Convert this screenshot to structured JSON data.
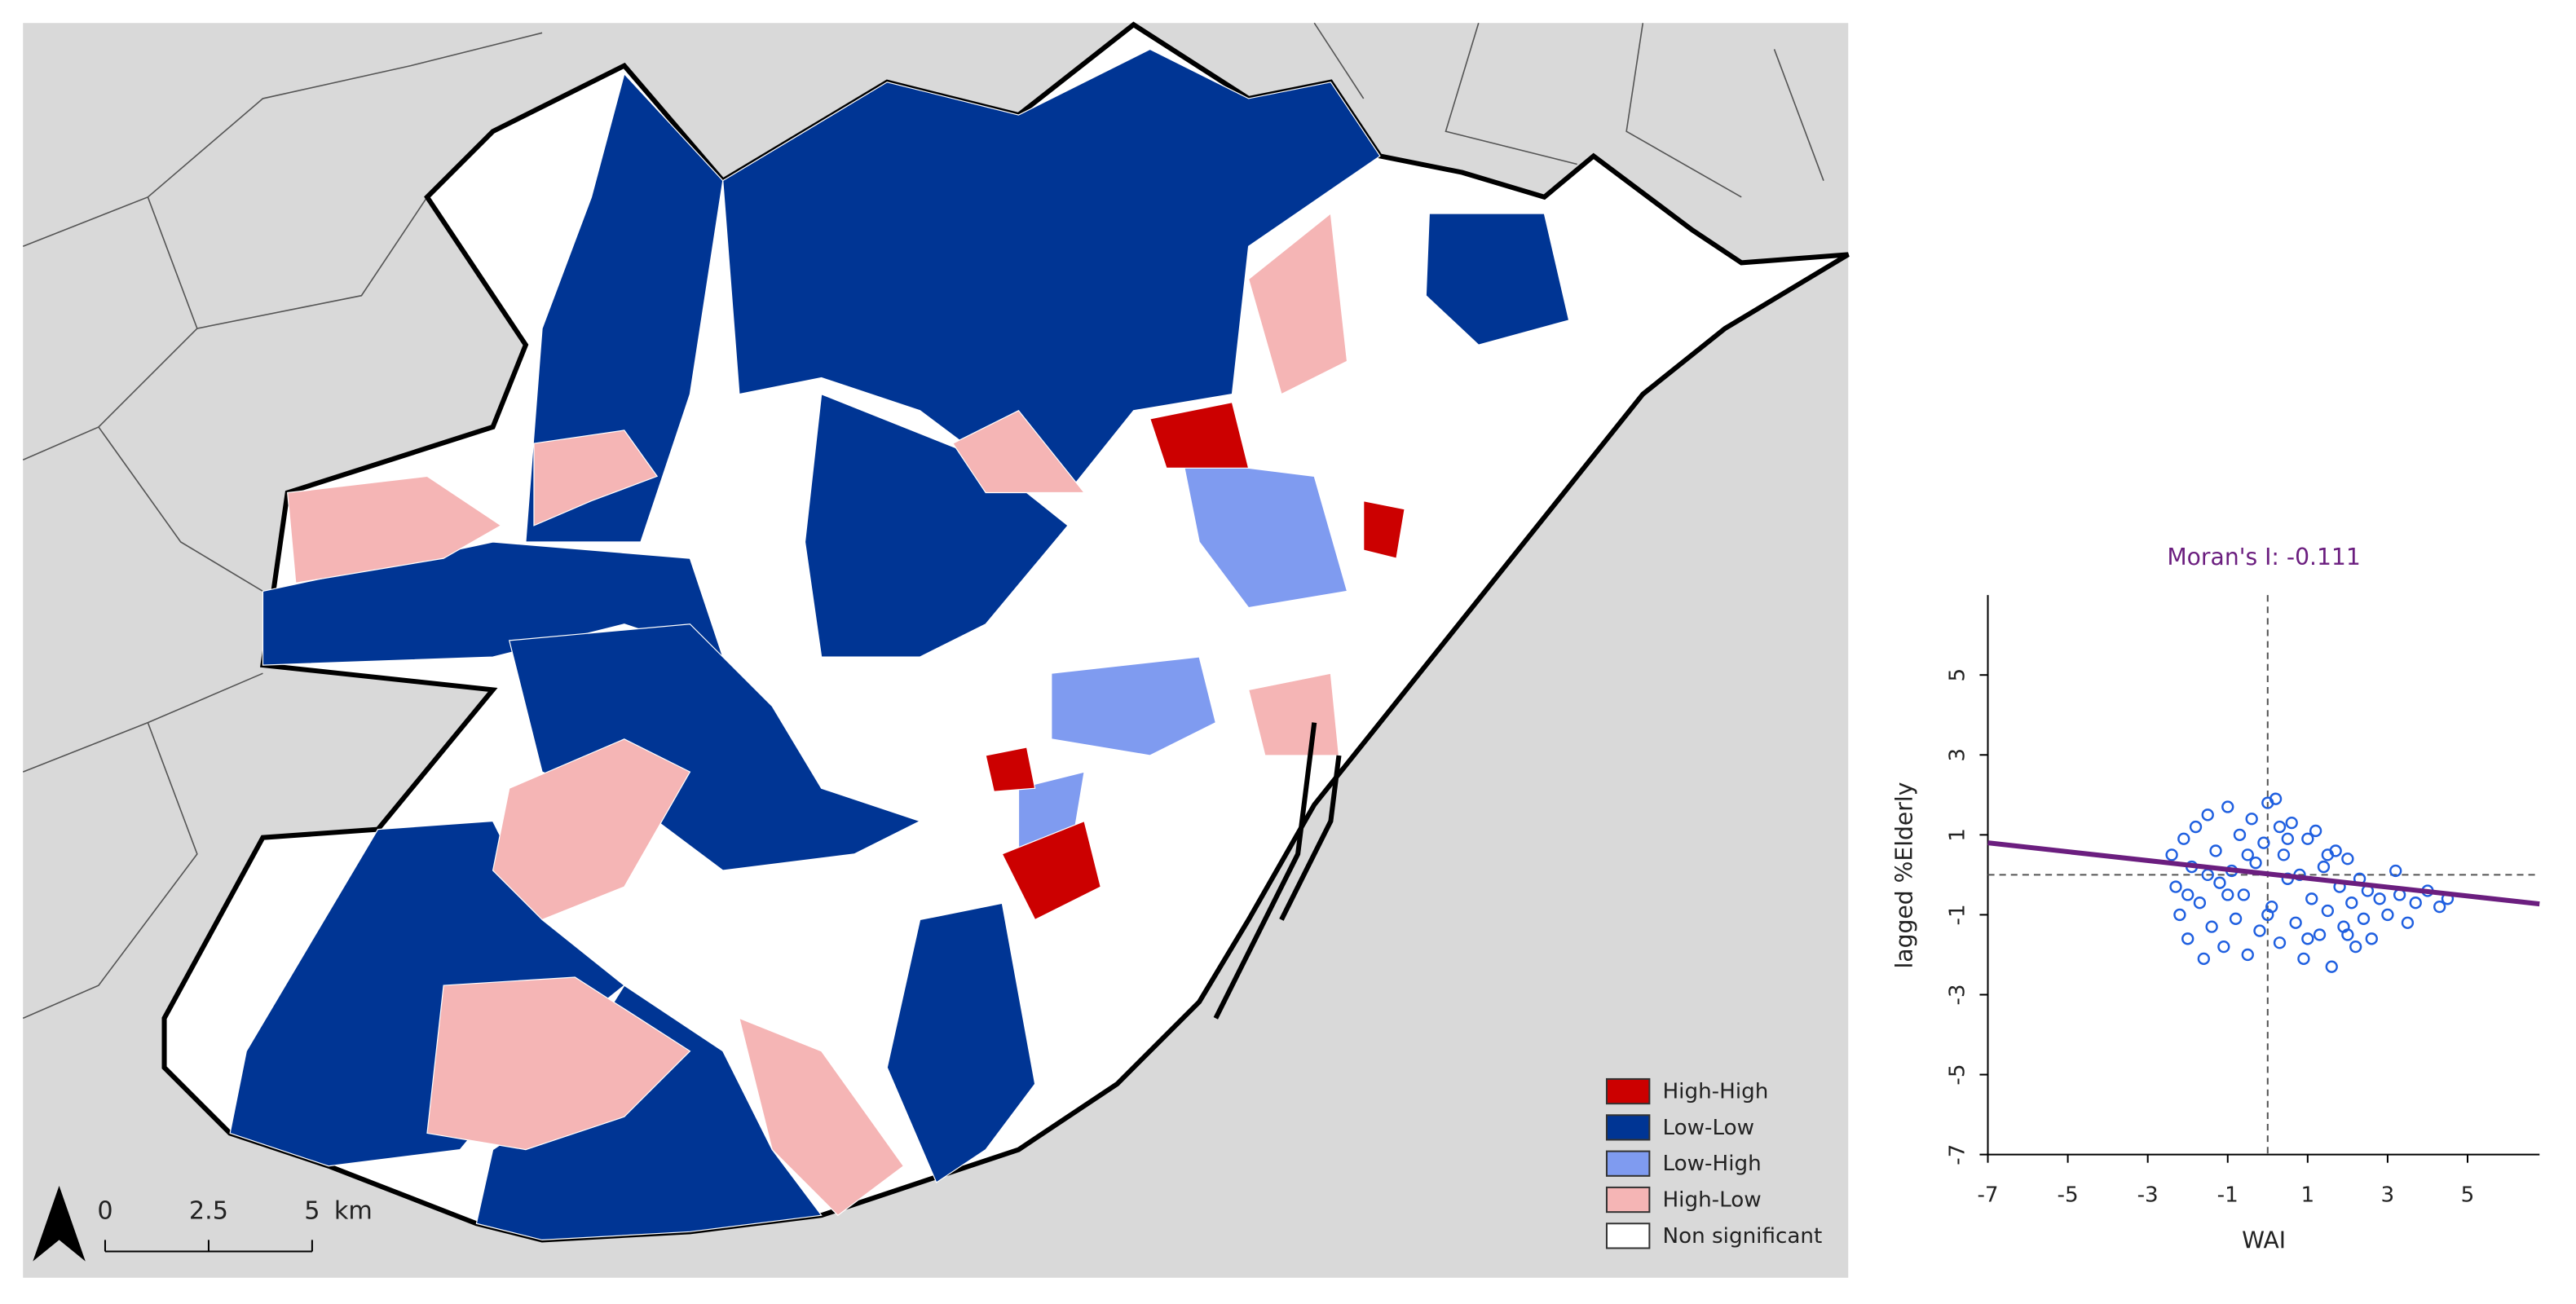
{
  "map": {
    "legend": [
      "High-High",
      "Low-Low",
      "Low-High",
      "High-Low",
      "Non significant"
    ],
    "scale_bar": {
      "ticks": [
        "0",
        "2.5",
        "5"
      ],
      "unit": "km"
    }
  },
  "chart_data": {
    "type": "scatter",
    "title": "Moran's I: -0.111",
    "xlabel": "WAI",
    "ylabel": "lagged %Elderly",
    "xlim": [
      -7,
      6.8
    ],
    "ylim": [
      -7,
      7
    ],
    "xticks": [
      -7,
      -5,
      -3,
      -1,
      1,
      3,
      5
    ],
    "yticks": [
      -7,
      -5,
      -3,
      -1,
      1,
      3,
      5
    ],
    "reference_lines": {
      "x": 0,
      "y": 0
    },
    "fit": {
      "color": "#6b1e7f",
      "x": [
        -7,
        6.8
      ],
      "y": [
        0.8,
        -0.73
      ]
    },
    "series": [
      {
        "color": "#1f5fe0",
        "x": [
          -2.4,
          -2.3,
          -2.2,
          -2.1,
          -2.0,
          -1.9,
          -1.8,
          -1.7,
          -1.6,
          -1.5,
          -1.4,
          -1.3,
          -1.2,
          -1.1,
          -1.0,
          -0.9,
          -0.8,
          -0.7,
          -0.6,
          -0.5,
          -0.4,
          -0.3,
          -0.2,
          -0.1,
          0,
          0.1,
          0.2,
          0.3,
          0.4,
          0.5,
          0.6,
          0.7,
          0.8,
          0.9,
          1.0,
          1.1,
          1.2,
          1.3,
          1.4,
          1.5,
          1.6,
          1.7,
          1.8,
          1.9,
          2.0,
          2.1,
          2.2,
          2.3,
          2.4,
          2.5,
          2.6,
          2.8,
          3.0,
          3.2,
          3.3,
          3.5,
          3.7,
          4.0,
          4.3,
          4.5,
          -1.5,
          -0.5,
          0.5,
          1.5,
          -1.0,
          0.0,
          1.0,
          2.0,
          -2.0,
          0.3
        ],
        "values": [
          0.5,
          -0.3,
          -1.0,
          0.9,
          -1.6,
          0.2,
          1.2,
          -0.7,
          -2.1,
          1.5,
          -1.3,
          0.6,
          -0.2,
          -1.8,
          1.7,
          0.1,
          -1.1,
          1.0,
          -0.5,
          -2.0,
          1.4,
          0.3,
          -1.4,
          0.8,
          1.8,
          -0.8,
          1.9,
          -1.7,
          0.5,
          -0.1,
          1.3,
          -1.2,
          0.0,
          -2.1,
          0.9,
          -0.6,
          1.1,
          -1.5,
          0.2,
          -0.9,
          -2.3,
          0.6,
          -0.3,
          -1.3,
          0.4,
          -0.7,
          -1.8,
          -0.1,
          -1.1,
          -0.4,
          -1.6,
          -0.6,
          -1.0,
          0.1,
          -0.5,
          -1.2,
          -0.7,
          -0.4,
          -0.8,
          -0.6,
          0.0,
          0.5,
          0.9,
          0.5,
          -0.5,
          -1.0,
          -1.6,
          -1.5,
          -0.5,
          1.2
        ]
      }
    ]
  }
}
